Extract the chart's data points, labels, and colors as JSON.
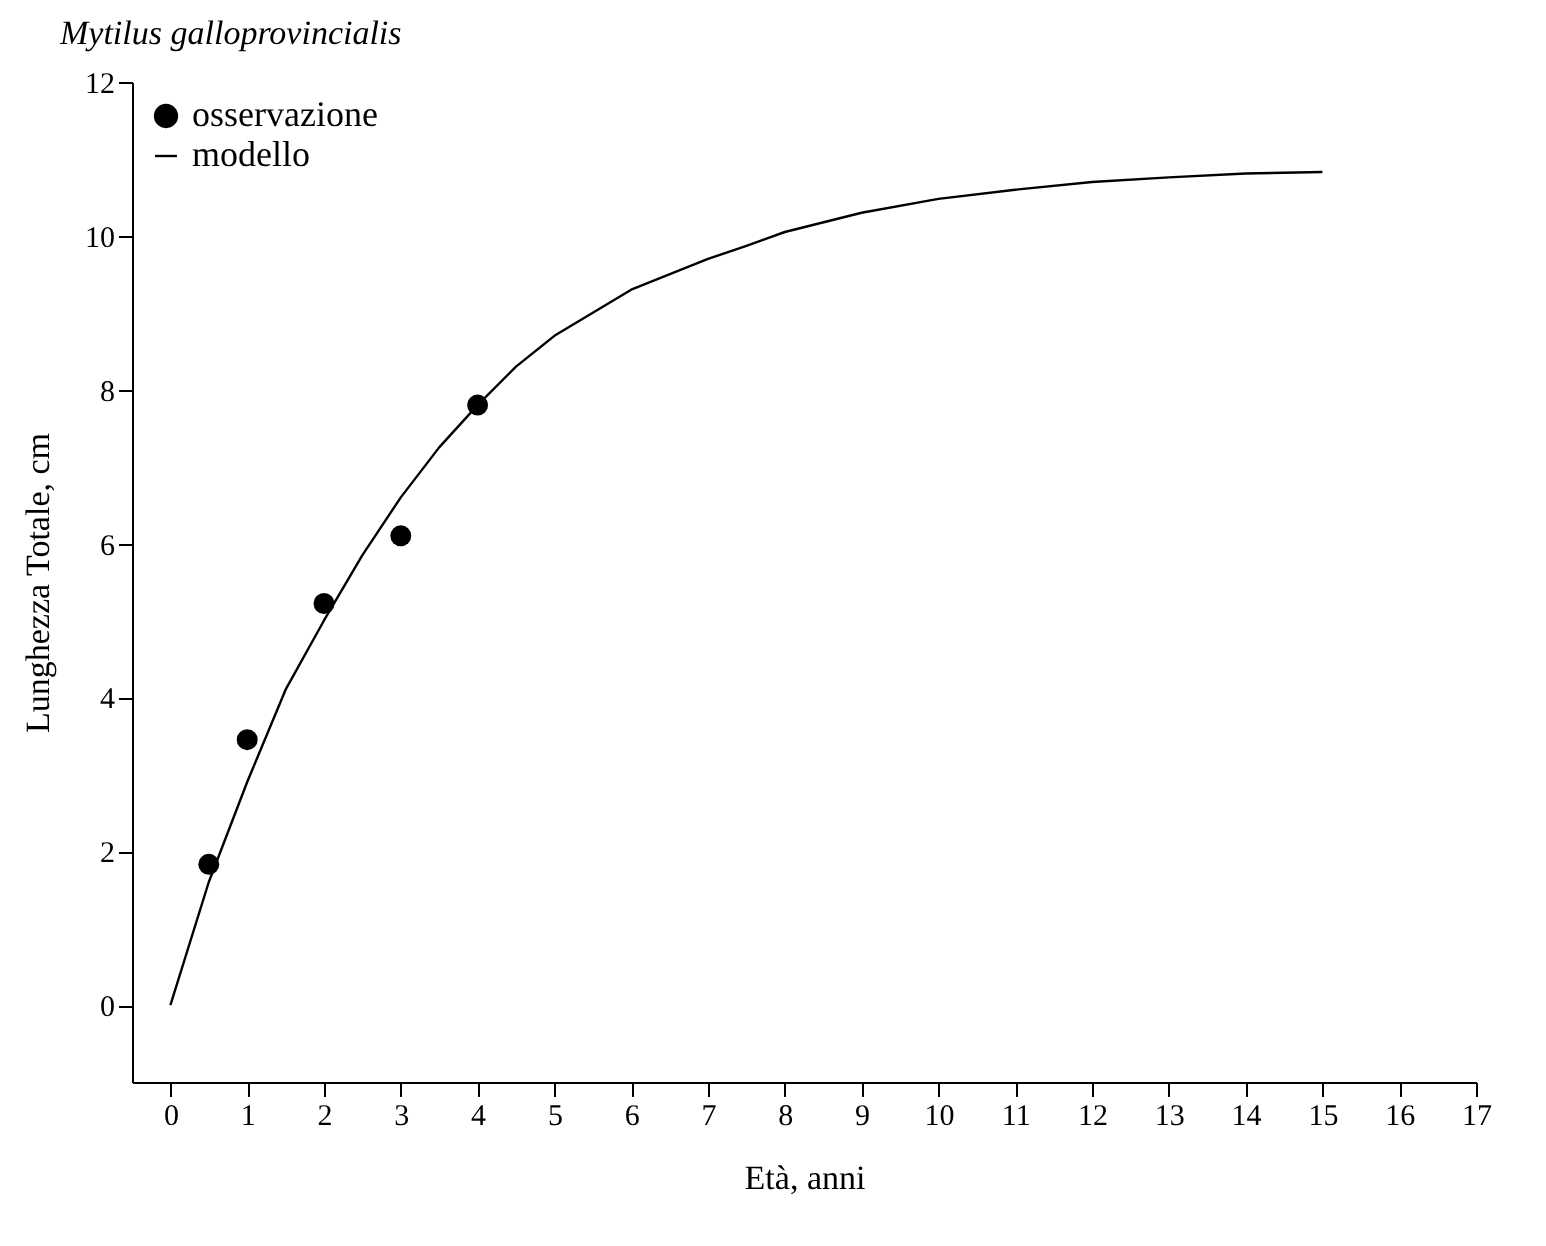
{
  "chart_data": {
    "type": "scatter",
    "title": "Mytilus galloprovincialis",
    "xlabel": "Età, anni",
    "ylabel": "Lunghezza Totale, cm",
    "series": [
      {
        "name": "osservazione",
        "color": "#000000",
        "marker": "circle",
        "x": [
          0.5,
          1,
          2,
          3,
          4
        ],
        "values": [
          1.83,
          3.45,
          5.22,
          6.1,
          7.8
        ]
      },
      {
        "name": "modello",
        "type": "line",
        "color": "#000000",
        "line_style": "solid",
        "x": [
          0,
          0.5,
          1,
          1.5,
          2,
          2.5,
          3,
          3.5,
          4,
          4.5,
          5,
          6,
          7,
          7.5,
          8,
          9,
          10,
          11,
          12,
          13,
          14,
          15
        ],
        "values": [
          0,
          1.6,
          2.9,
          4.1,
          5.0,
          5.85,
          6.6,
          7.25,
          7.8,
          8.3,
          8.7,
          9.3,
          9.7,
          9.87,
          10.05,
          10.3,
          10.48,
          10.6,
          10.7,
          10.76,
          10.81,
          10.83
        ]
      }
    ],
    "xlim": [
      -0.5,
      17
    ],
    "xticks": [
      0,
      1,
      2,
      3,
      4,
      5,
      6,
      7,
      8,
      9,
      10,
      11,
      12,
      13,
      14,
      15,
      16,
      17
    ],
    "ylim": [
      -1,
      12
    ],
    "yticks": [
      0,
      2,
      4,
      6,
      8,
      10,
      12
    ],
    "grid": false,
    "legend": "top left"
  }
}
